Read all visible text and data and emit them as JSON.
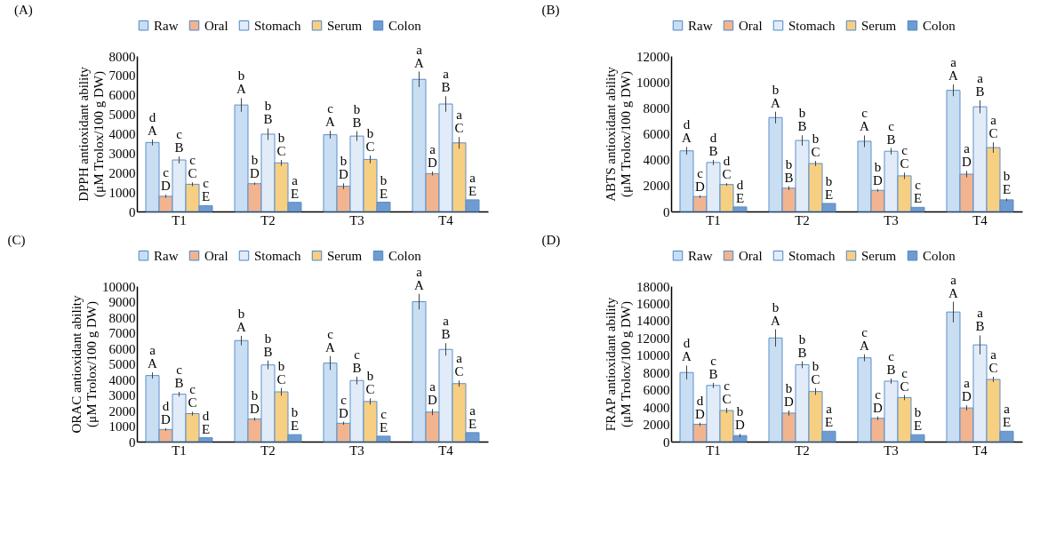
{
  "chart_data": [
    {
      "type": "bar",
      "title": "(A)",
      "ylabel": "DPPH antioxidant ability\n(μM Trolox/100 g DW)",
      "categories": [
        "T1",
        "T2",
        "T3",
        "T4"
      ],
      "ylim": [
        0,
        8000
      ],
      "yticks": [
        0,
        1000,
        2000,
        3000,
        4000,
        5000,
        6000,
        7000,
        8000
      ],
      "grid": false,
      "legend": "top",
      "series": [
        {
          "name": "Raw",
          "color": "#c9def2",
          "values": [
            3550,
            5480,
            3950,
            6800
          ],
          "errors": [
            150,
            350,
            200,
            400
          ],
          "value_labels": [
            "d\nA",
            "b\nA",
            "c\nA",
            "a\nA"
          ]
        },
        {
          "name": "Oral",
          "color": "#f2b48e",
          "values": [
            780,
            1430,
            1300,
            1950
          ],
          "errors": [
            80,
            60,
            150,
            100
          ],
          "value_labels": [
            "c\nD",
            "b\nD",
            "b\nD",
            "a\nD"
          ]
        },
        {
          "name": "Stomach",
          "color": "#e2ecf8",
          "values": [
            2650,
            3980,
            3880,
            5530
          ],
          "errors": [
            180,
            300,
            250,
            400
          ],
          "value_labels": [
            "c\nB",
            "b\nB",
            "b\nB",
            "a\nB"
          ]
        },
        {
          "name": "Serum",
          "color": "#f7cf82",
          "values": [
            1400,
            2500,
            2680,
            3530
          ],
          "errors": [
            100,
            150,
            200,
            300
          ],
          "value_labels": [
            "c\nC",
            "b\nC",
            "b\nC",
            "a\nC"
          ]
        },
        {
          "name": "Colon",
          "color": "#6f9bd1",
          "values": [
            300,
            470,
            480,
            600
          ],
          "errors": [
            null,
            null,
            null,
            null
          ],
          "value_labels": [
            "c\nE",
            "a\nE",
            "b\nE",
            "a\nE"
          ]
        }
      ]
    },
    {
      "type": "bar",
      "title": "(B)",
      "ylabel": "ABTS antioxidant ability\n(μM Trolox/100 g DW)",
      "categories": [
        "T1",
        "T2",
        "T3",
        "T4"
      ],
      "ylim": [
        0,
        12000
      ],
      "yticks": [
        0,
        2000,
        4000,
        6000,
        8000,
        10000,
        12000
      ],
      "grid": false,
      "legend": "top",
      "series": [
        {
          "name": "Raw",
          "color": "#c9def2",
          "values": [
            4680,
            7250,
            5420,
            9350
          ],
          "errors": [
            300,
            450,
            450,
            450
          ],
          "value_labels": [
            "d\nA",
            "b\nA",
            "c\nA",
            "a\nA"
          ]
        },
        {
          "name": "Oral",
          "color": "#f2b48e",
          "values": [
            1150,
            1800,
            1630,
            2880
          ],
          "errors": [
            100,
            150,
            100,
            250
          ],
          "value_labels": [
            "c\nD",
            "b\nB",
            "b\nD",
            "a\nD"
          ]
        },
        {
          "name": "Stomach",
          "color": "#e2ecf8",
          "values": [
            3780,
            5480,
            4650,
            8080
          ],
          "errors": [
            200,
            400,
            250,
            500
          ],
          "value_labels": [
            "d\nB",
            "b\nB",
            "c\nB",
            "a\nB"
          ]
        },
        {
          "name": "Serum",
          "color": "#f7cf82",
          "values": [
            2080,
            3700,
            2750,
            4930
          ],
          "errors": [
            100,
            200,
            250,
            400
          ],
          "value_labels": [
            "d\nC",
            "b\nC",
            "c\nC",
            "a\nC"
          ]
        },
        {
          "name": "Colon",
          "color": "#6f9bd1",
          "values": [
            350,
            620,
            320,
            900
          ],
          "errors": [
            null,
            null,
            null,
            100
          ],
          "value_labels": [
            "d\nE",
            "b\nE",
            "c\nE",
            "b\nE"
          ]
        }
      ]
    },
    {
      "type": "bar",
      "title": "(C)",
      "ylabel": "ORAC antioxidant ability\n(μM Trolox/100 g DW)",
      "categories": [
        "T1",
        "T2",
        "T3",
        "T4"
      ],
      "ylim": [
        0,
        10000
      ],
      "yticks": [
        0,
        1000,
        2000,
        3000,
        4000,
        5000,
        6000,
        7000,
        8000,
        9000,
        10000
      ],
      "grid": false,
      "legend": "top",
      "series": [
        {
          "name": "Raw",
          "color": "#c9def2",
          "values": [
            4250,
            6500,
            5050,
            9000
          ],
          "errors": [
            200,
            300,
            450,
            500
          ],
          "value_labels": [
            "a\nA",
            "b\nA",
            "c\nA",
            "a\nA"
          ]
        },
        {
          "name": "Oral",
          "color": "#f2b48e",
          "values": [
            780,
            1450,
            1180,
            1900
          ],
          "errors": [
            80,
            100,
            100,
            200
          ],
          "value_labels": [
            "d\nD",
            "b\nD",
            "c\nD",
            "a\nD"
          ]
        },
        {
          "name": "Stomach",
          "color": "#e2ecf8",
          "values": [
            3050,
            4930,
            3930,
            5930
          ],
          "errors": [
            150,
            280,
            250,
            400
          ],
          "value_labels": [
            "c\nB",
            "b\nB",
            "c\nB",
            "a\nB"
          ]
        },
        {
          "name": "Serum",
          "color": "#f7cf82",
          "values": [
            1800,
            3200,
            2580,
            3730
          ],
          "errors": [
            120,
            250,
            200,
            200
          ],
          "value_labels": [
            "c\nC",
            "b\nC",
            "b\nC",
            "a\nC"
          ]
        },
        {
          "name": "Colon",
          "color": "#6f9bd1",
          "values": [
            250,
            450,
            350,
            580
          ],
          "errors": [
            null,
            null,
            null,
            null
          ],
          "value_labels": [
            "d\nE",
            "b\nE",
            "c\nE",
            "a\nE"
          ]
        }
      ]
    },
    {
      "type": "bar",
      "title": "(D)",
      "ylabel": "FRAP antioxidant ability\n(μM Trolox/100 g DW)",
      "categories": [
        "T1",
        "T2",
        "T3",
        "T4"
      ],
      "ylim": [
        0,
        18000
      ],
      "yticks": [
        0,
        2000,
        4000,
        6000,
        8000,
        10000,
        12000,
        14000,
        16000,
        18000
      ],
      "grid": false,
      "legend": "top",
      "series": [
        {
          "name": "Raw",
          "color": "#c9def2",
          "values": [
            8000,
            12000,
            9700,
            15000
          ],
          "errors": [
            800,
            1000,
            400,
            1200
          ],
          "value_labels": [
            "d\nA",
            "b\nA",
            "c\nA",
            "a\nA"
          ]
        },
        {
          "name": "Oral",
          "color": "#f2b48e",
          "values": [
            2000,
            3300,
            2700,
            3900
          ],
          "errors": [
            200,
            300,
            200,
            300
          ],
          "value_labels": [
            "d\nD",
            "b\nD",
            "c\nD",
            "a\nD"
          ]
        },
        {
          "name": "Stomach",
          "color": "#e2ecf8",
          "values": [
            6500,
            8900,
            7000,
            11200
          ],
          "errors": [
            300,
            400,
            300,
            1100
          ],
          "value_labels": [
            "c\nB",
            "b\nB",
            "c\nB",
            "a\nB"
          ]
        },
        {
          "name": "Serum",
          "color": "#f7cf82",
          "values": [
            3600,
            5800,
            5100,
            7200
          ],
          "errors": [
            300,
            400,
            300,
            300
          ],
          "value_labels": [
            "c\nC",
            "b\nC",
            "c\nC",
            "a\nC"
          ]
        },
        {
          "name": "Colon",
          "color": "#6f9bd1",
          "values": [
            700,
            1200,
            800,
            1200
          ],
          "errors": [
            200,
            null,
            null,
            null
          ],
          "value_labels": [
            "b\nD",
            "a\nE",
            "b\nE",
            "a\nE"
          ]
        }
      ]
    }
  ]
}
